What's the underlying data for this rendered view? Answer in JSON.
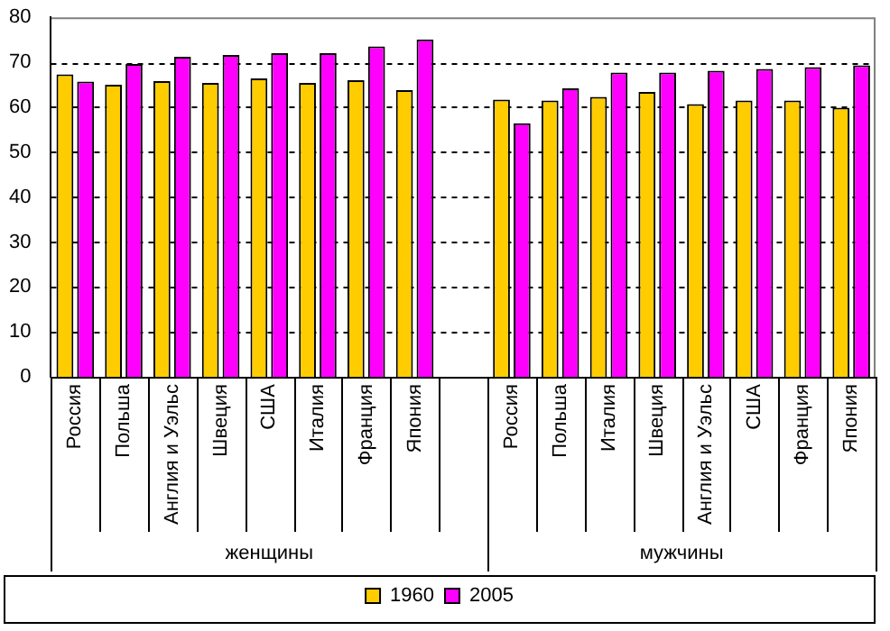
{
  "chart_data": {
    "type": "bar",
    "categories": [
      "Россия",
      "Польша",
      "Англия и Уэльс",
      "Швеция",
      "США",
      "Италия",
      "Франция",
      "Япония",
      null,
      "Россия",
      "Польша",
      "Италия",
      "Швеция",
      "Англия и Уэльс",
      "США",
      "Франция",
      "Япония"
    ],
    "series": [
      {
        "name": "1960",
        "color": "#ffcc00",
        "values": [
          67.3,
          65.0,
          65.8,
          65.4,
          66.4,
          65.4,
          66.0,
          63.8,
          null,
          61.7,
          61.5,
          62.3,
          63.4,
          60.7,
          61.5,
          61.5,
          59.9
        ]
      },
      {
        "name": "2005",
        "color": "#ff00ff",
        "values": [
          65.7,
          69.6,
          71.2,
          71.6,
          72.0,
          72.0,
          73.5,
          75.1,
          null,
          56.4,
          64.2,
          67.7,
          67.7,
          68.1,
          68.5,
          68.9,
          69.3
        ]
      }
    ],
    "annotations": [
      "женщины",
      "мужчины"
    ],
    "ylim": [
      0,
      80
    ],
    "yticks": [
      0,
      10,
      20,
      30,
      40,
      50,
      60,
      70,
      80
    ],
    "grid": "y",
    "legend": "bottom"
  }
}
